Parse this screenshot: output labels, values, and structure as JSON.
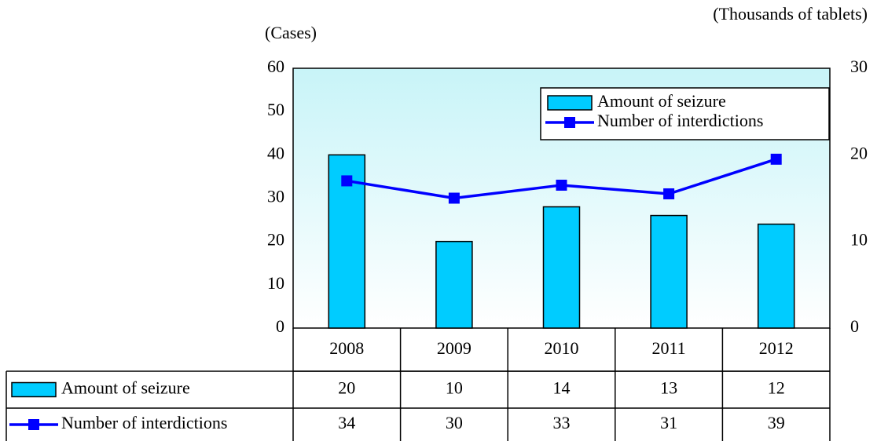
{
  "chart_data": {
    "type": "bar",
    "y_label": "(Cases)",
    "y2_label": "(Thousands of tablets)",
    "categories": [
      "2008",
      "2009",
      "2010",
      "2011",
      "2012"
    ],
    "series": [
      {
        "name": "Amount of seizure",
        "type": "bar",
        "axis": "y2",
        "color": "#00ccff",
        "values": [
          20,
          10,
          14,
          13,
          12
        ]
      },
      {
        "name": "Number of interdictions",
        "type": "line",
        "color": "#0000ff",
        "values": [
          34,
          30,
          33,
          31,
          39
        ]
      }
    ],
    "ylim": [
      0,
      60
    ],
    "yticks": [
      0,
      10,
      20,
      30,
      40,
      50,
      60
    ],
    "y2lim": [
      0,
      30
    ],
    "y2ticks": [
      0,
      10,
      20,
      30
    ],
    "legend": "upper right",
    "data_table": true
  }
}
